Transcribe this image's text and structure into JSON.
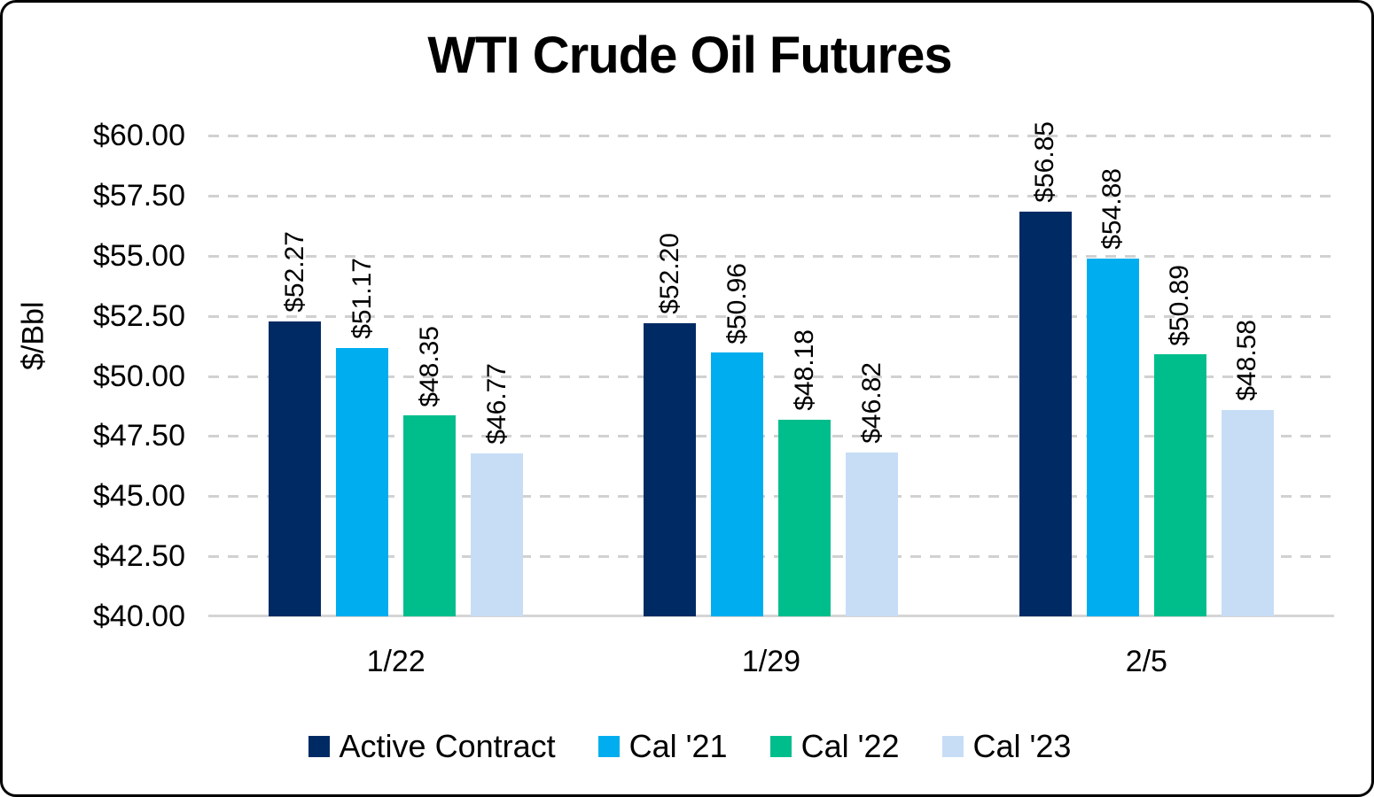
{
  "chart_data": {
    "type": "bar",
    "title": "WTI Crude Oil Futures",
    "ylabel": "$/Bbl",
    "xlabel": "",
    "categories": [
      "1/22",
      "1/29",
      "2/5"
    ],
    "series": [
      {
        "name": "Active Contract",
        "color": "#002a64",
        "values": [
          52.27,
          52.2,
          56.85
        ],
        "labels": [
          "$52.27",
          "$52.20",
          "$56.85"
        ]
      },
      {
        "name": "Cal '21",
        "color": "#00aeef",
        "values": [
          51.17,
          50.96,
          54.88
        ],
        "labels": [
          "$51.17",
          "$50.96",
          "$54.88"
        ]
      },
      {
        "name": "Cal '22",
        "color": "#00be8c",
        "values": [
          48.35,
          48.18,
          50.89
        ],
        "labels": [
          "$48.35",
          "$48.18",
          "$50.89"
        ]
      },
      {
        "name": "Cal '23",
        "color": "#c7ddf6",
        "values": [
          46.77,
          46.82,
          48.58
        ],
        "labels": [
          "$46.77",
          "$46.82",
          "$48.58"
        ]
      }
    ],
    "y_ticks": [
      "$60.00",
      "$57.50",
      "$55.00",
      "$52.50",
      "$50.00",
      "$47.50",
      "$45.00",
      "$42.50",
      "$40.00"
    ],
    "ylim": [
      40,
      60
    ],
    "grid": "horizontal-dashed",
    "legend_position": "bottom",
    "data_label_rotation": 90
  }
}
